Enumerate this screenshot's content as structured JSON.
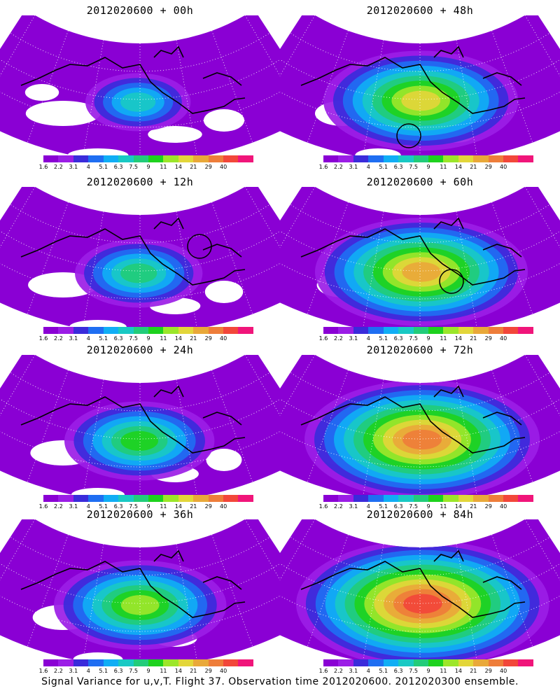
{
  "panels": [
    {
      "title": "2012020600 + 00h",
      "intensity": 0.22,
      "rings": [],
      "circles": []
    },
    {
      "title": "2012020600 + 48h",
      "intensity": 0.62,
      "rings": [],
      "circles": [
        "storm-circle"
      ]
    },
    {
      "title": "2012020600 + 12h",
      "intensity": 0.32,
      "rings": [],
      "circles": [
        "storm-circle"
      ]
    },
    {
      "title": "2012020600 + 60h",
      "intensity": 0.7,
      "rings": [],
      "circles": [
        "storm-circle"
      ]
    },
    {
      "title": "2012020600 + 24h",
      "intensity": 0.42,
      "rings": [],
      "circles": []
    },
    {
      "title": "2012020600 + 72h",
      "intensity": 0.8,
      "rings": [],
      "circles": []
    },
    {
      "title": "2012020600 + 36h",
      "intensity": 0.52,
      "rings": [],
      "circles": []
    },
    {
      "title": "2012020600 + 84h",
      "intensity": 0.88,
      "rings": [],
      "circles": []
    }
  ],
  "colorbar": {
    "labels": [
      "1.6",
      "2.2",
      "3.1",
      "4",
      "5.1",
      "6.3",
      "7.5",
      "9",
      "11",
      "14",
      "21",
      "29",
      "40"
    ],
    "colors": [
      "#8a00d4",
      "#9b1de6",
      "#3a2bdb",
      "#1f6ef2",
      "#10aef5",
      "#19c9c4",
      "#22cc7a",
      "#1ed21e",
      "#9ce62a",
      "#e3d63a",
      "#e9a839",
      "#ee7d3a",
      "#f2473a",
      "#f0157a"
    ]
  },
  "footer": "Signal Variance for u,v,T. Flight 37. Observation time 2012020600. 2012020300 ensemble."
}
